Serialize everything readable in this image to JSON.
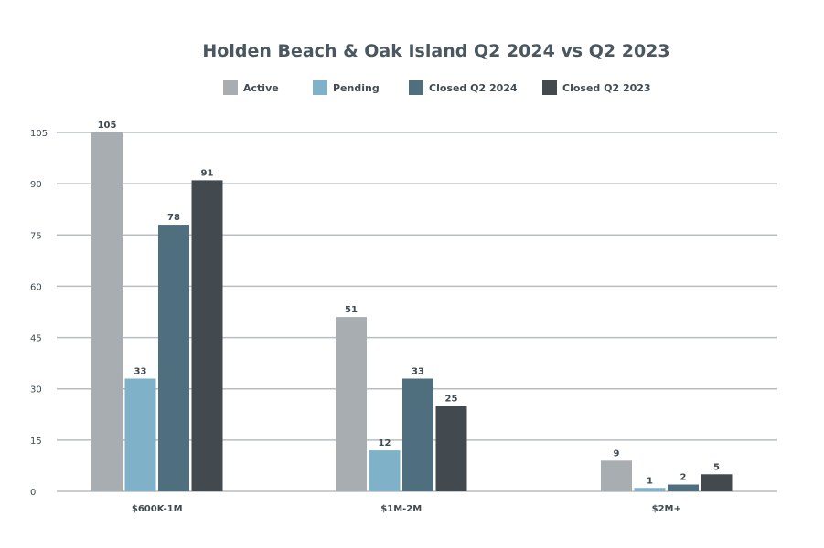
{
  "chart_data": {
    "type": "bar",
    "title": "Holden Beach & Oak Island Q2 2024 vs Q2 2023",
    "categories": [
      "$600K-1M",
      "$1M-2M",
      "$2M+"
    ],
    "series": [
      {
        "name": "Active",
        "color": "#a8adb2",
        "values": [
          105,
          51,
          9
        ]
      },
      {
        "name": "Pending",
        "color": "#7fb2c8",
        "values": [
          33,
          12,
          1
        ]
      },
      {
        "name": "Closed Q2 2024",
        "color": "#4f6f7f",
        "values": [
          78,
          33,
          2
        ]
      },
      {
        "name": "Closed Q2 2023",
        "color": "#42494f",
        "values": [
          91,
          25,
          5
        ]
      }
    ],
    "ylim": [
      0,
      105
    ],
    "yticks": [
      0,
      15,
      30,
      45,
      60,
      75,
      90,
      105
    ],
    "grid": true,
    "legend": "top-center"
  }
}
